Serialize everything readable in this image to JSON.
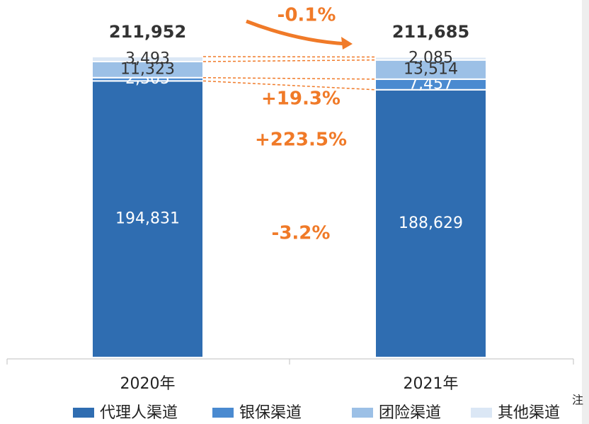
{
  "chart_data": {
    "type": "stacked_bar",
    "categories": [
      "2020年",
      "2021年"
    ],
    "series": [
      {
        "name": "代理人渠道",
        "color": "#2f6db1",
        "values": [
          194831,
          188629
        ],
        "value_labels": [
          "194,831",
          "188,629"
        ]
      },
      {
        "name": "银保渠道",
        "color": "#4a8ad0",
        "values": [
          2305,
          7457
        ],
        "value_labels": [
          "2,305",
          "7,457"
        ]
      },
      {
        "name": "团险渠道",
        "color": "#9cc0e6",
        "values": [
          11323,
          13514
        ],
        "value_labels": [
          "11,323",
          "13,514"
        ]
      },
      {
        "name": "其他渠道",
        "color": "#dbe7f5",
        "values": [
          3493,
          2085
        ],
        "value_labels": [
          "3,493",
          "2,085"
        ]
      }
    ],
    "totals": [
      {
        "value": 211952,
        "label": "211,952"
      },
      {
        "value": 211685,
        "label": "211,685"
      }
    ],
    "annotations": [
      "-0.1%",
      "+19.3%",
      "+223.5%",
      "-3.2%"
    ],
    "legend_note": "注"
  }
}
